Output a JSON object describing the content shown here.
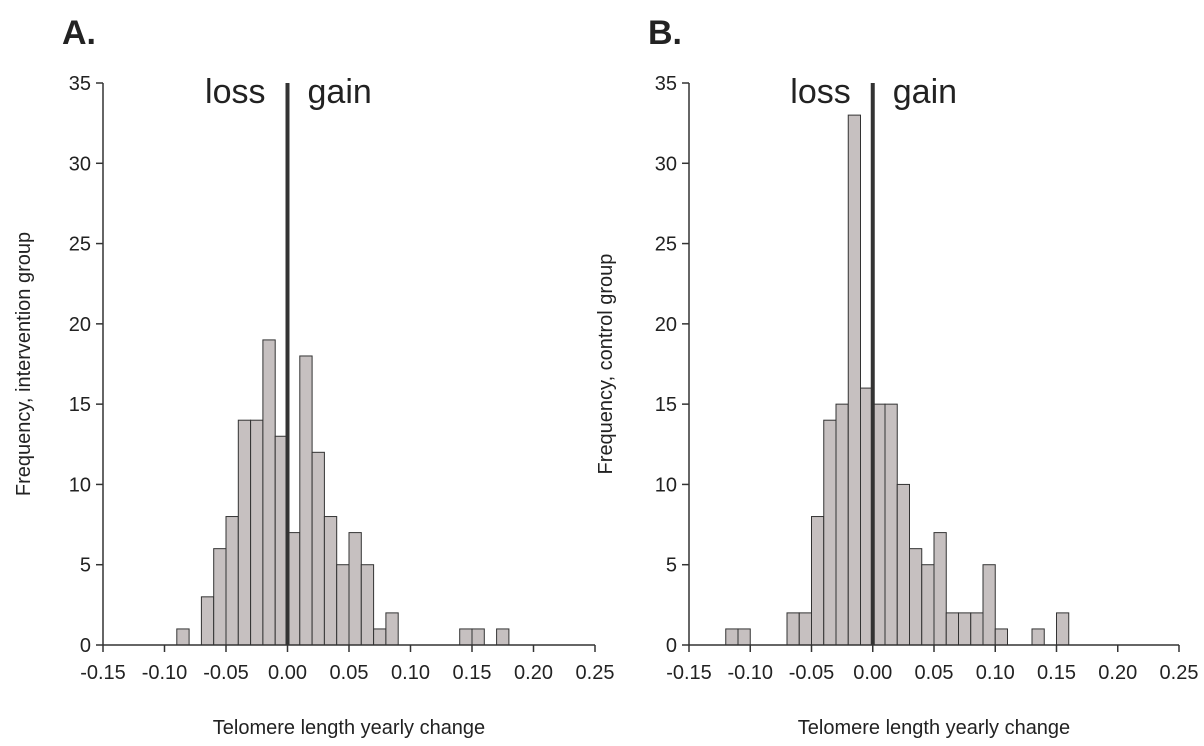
{
  "colors": {
    "bar_fill": "#c6c0c0",
    "bar_stroke": "#333333",
    "axis": "#333333",
    "zero_line": "#333333",
    "text": "#222222"
  },
  "chart_data": [
    {
      "panel_label": "A.",
      "type": "bar",
      "histogram": true,
      "xlabel": "Telomere length yearly change",
      "ylabel": "Frequency, intervention group",
      "xlim": [
        -0.15,
        0.25
      ],
      "ylim": [
        0,
        35
      ],
      "xticks": [
        "-0.15",
        "-0.10",
        "-0.05",
        "0.00",
        "0.05",
        "0.10",
        "0.15",
        "0.20",
        "0.25"
      ],
      "yticks": [
        "0",
        "5",
        "10",
        "15",
        "20",
        "25",
        "30",
        "35"
      ],
      "bin_width": 0.01,
      "bin_starts": [
        -0.09,
        -0.08,
        -0.07,
        -0.06,
        -0.05,
        -0.04,
        -0.03,
        -0.02,
        -0.01,
        0.0,
        0.01,
        0.02,
        0.03,
        0.04,
        0.05,
        0.06,
        0.07,
        0.08,
        0.09,
        0.1,
        0.11,
        0.12,
        0.13,
        0.14,
        0.15,
        0.16,
        0.17,
        0.18,
        0.19,
        0.2,
        0.21,
        0.22
      ],
      "values": [
        1,
        0,
        3,
        6,
        8,
        14,
        14,
        19,
        13,
        7,
        18,
        12,
        8,
        5,
        7,
        5,
        1,
        2,
        0,
        0,
        0,
        0,
        0,
        1,
        1,
        0,
        1,
        0,
        0,
        0,
        0,
        0
      ],
      "reference_line_x": 0.0,
      "annotations": {
        "left": "loss",
        "right": "gain"
      },
      "grid": false
    },
    {
      "panel_label": "B.",
      "type": "bar",
      "histogram": true,
      "xlabel": "Telomere length yearly change",
      "ylabel": "Frequency, control group",
      "xlim": [
        -0.15,
        0.25
      ],
      "ylim": [
        0,
        35
      ],
      "xticks": [
        "-0.15",
        "-0.10",
        "-0.05",
        "0.00",
        "0.05",
        "0.10",
        "0.15",
        "0.20",
        "0.25"
      ],
      "yticks": [
        "0",
        "5",
        "10",
        "15",
        "20",
        "25",
        "30",
        "35"
      ],
      "bin_width": 0.01,
      "bin_starts": [
        -0.12,
        -0.11,
        -0.1,
        -0.09,
        -0.08,
        -0.07,
        -0.06,
        -0.05,
        -0.04,
        -0.03,
        -0.02,
        -0.01,
        0.0,
        0.01,
        0.02,
        0.03,
        0.04,
        0.05,
        0.06,
        0.07,
        0.08,
        0.09,
        0.1,
        0.11,
        0.12,
        0.13,
        0.14,
        0.15,
        0.16,
        0.17,
        0.18,
        0.19
      ],
      "values": [
        1,
        1,
        0,
        0,
        0,
        2,
        2,
        8,
        14,
        15,
        33,
        16,
        15,
        15,
        10,
        6,
        5,
        7,
        2,
        2,
        2,
        5,
        1,
        0,
        0,
        1,
        0,
        2,
        0,
        0,
        0,
        0
      ],
      "reference_line_x": 0.0,
      "annotations": {
        "left": "loss",
        "right": "gain"
      },
      "grid": false
    }
  ]
}
